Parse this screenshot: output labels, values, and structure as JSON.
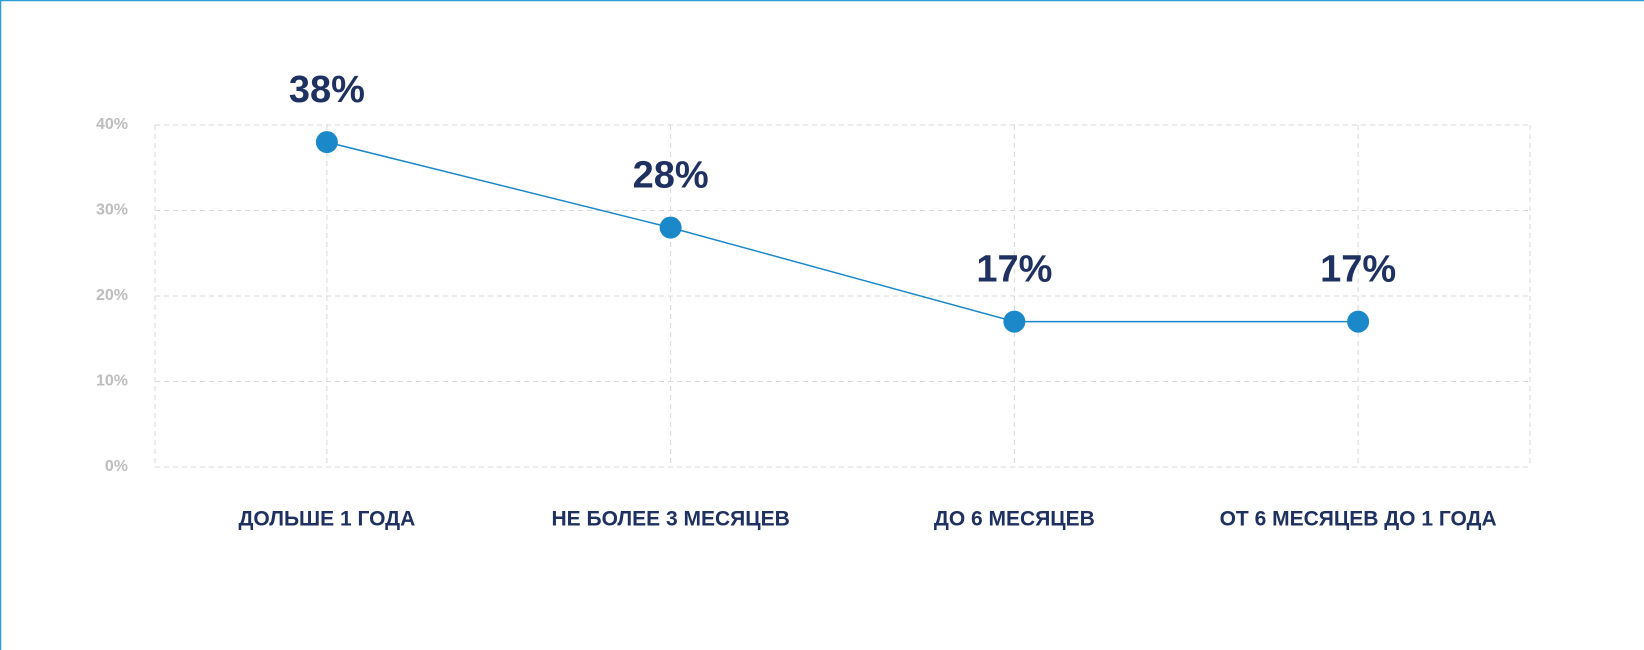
{
  "chart_data": {
    "type": "line",
    "categories": [
      "ДОЛЬШЕ 1 ГОДА",
      "НЕ БОЛЕЕ 3 МЕСЯЦЕВ",
      "ДО 6 МЕСЯЦЕВ",
      "ОТ 6 МЕСЯЦЕВ ДО 1 ГОДА"
    ],
    "series": [
      {
        "color": "#1a88c9",
        "values": [
          38,
          28,
          17,
          17
        ],
        "value_labels": [
          "38%",
          "28%",
          "17%",
          "17%"
        ]
      }
    ],
    "ylim": [
      0,
      40
    ],
    "yticks": [
      {
        "value": 0,
        "label": "0%"
      },
      {
        "value": 10,
        "label": "10%"
      },
      {
        "value": 20,
        "label": "20%"
      },
      {
        "value": 30,
        "label": "30%"
      },
      {
        "value": 40,
        "label": "40%"
      }
    ],
    "grid": true
  }
}
